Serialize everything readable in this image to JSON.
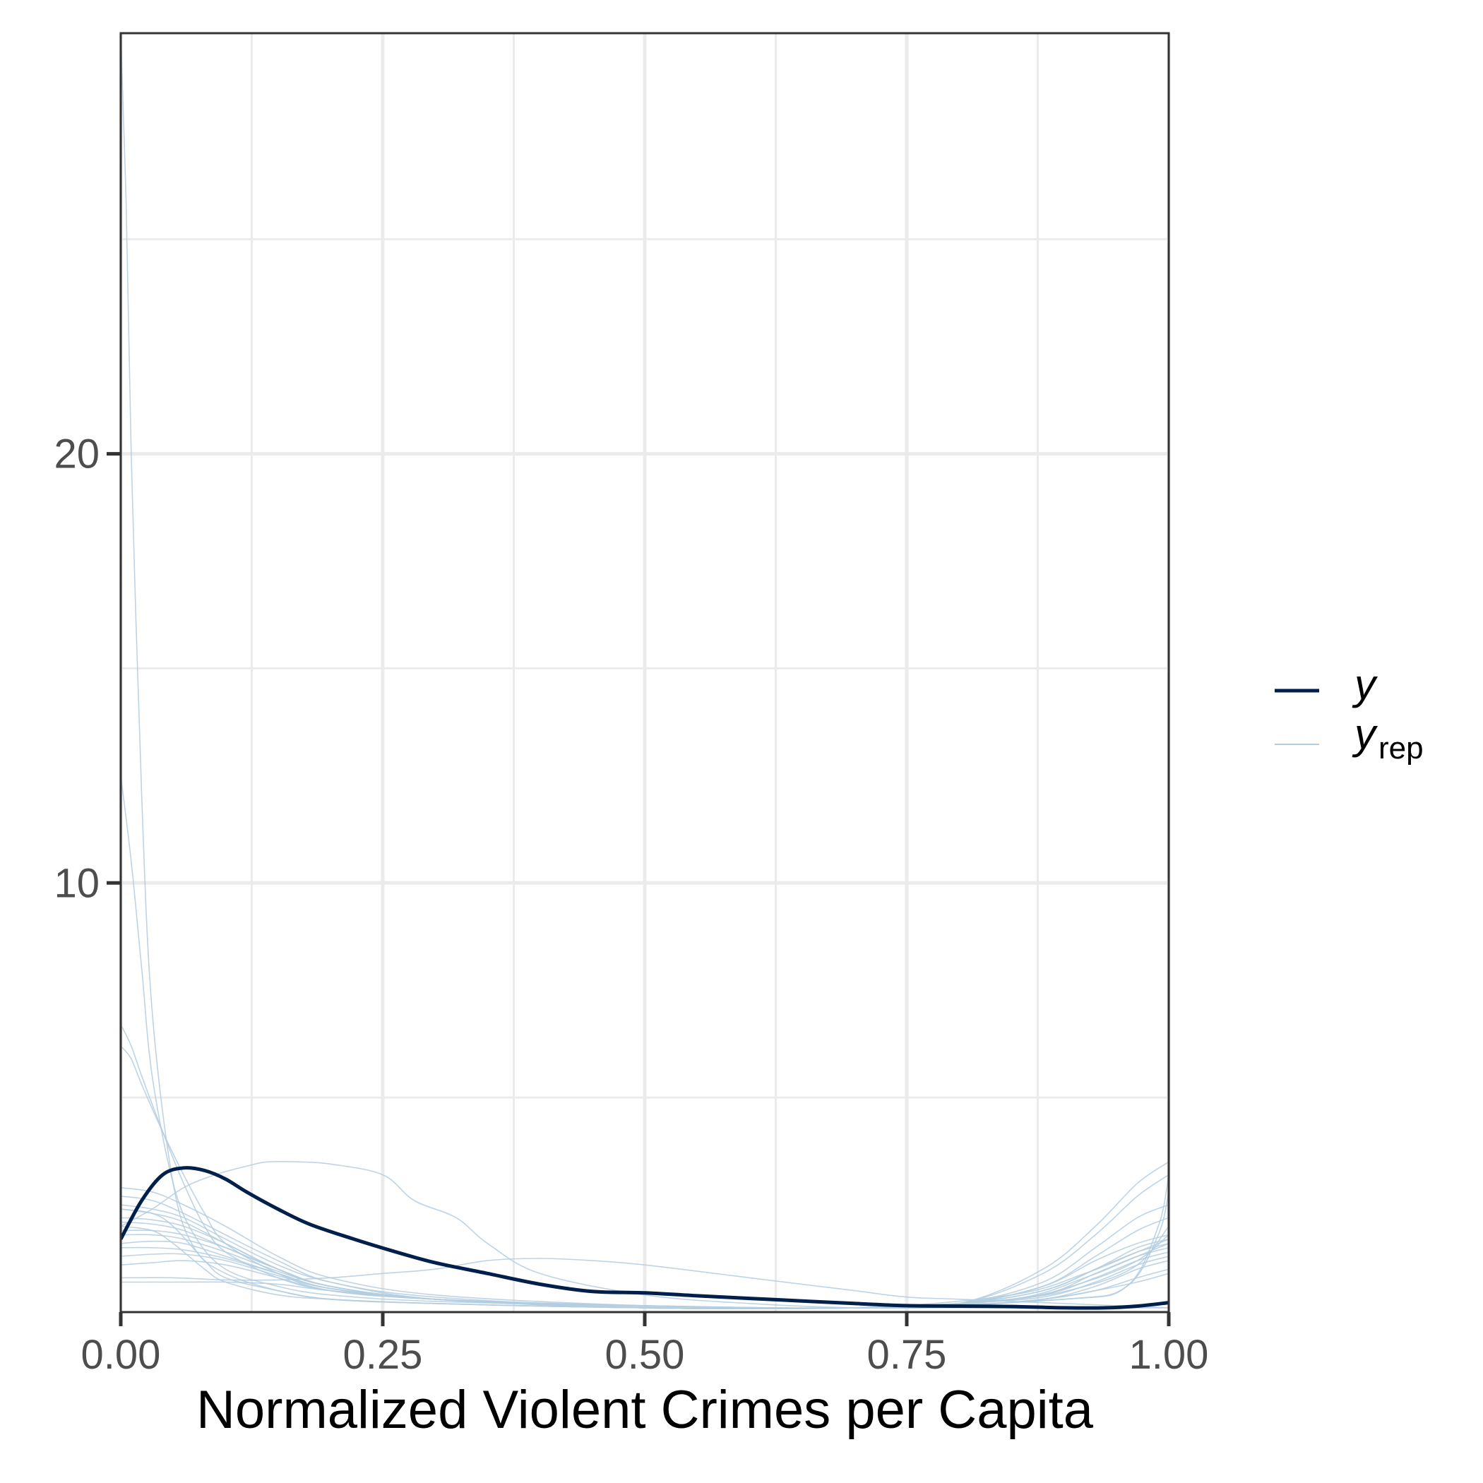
{
  "chart_data": {
    "type": "line",
    "xlabel": "Normalized Violent Crimes per Capita",
    "ylabel": "",
    "xlim": [
      0,
      1
    ],
    "ylim": [
      0,
      29.8
    ],
    "x_ticks": [
      {
        "value": 0,
        "label": "0.00"
      },
      {
        "value": 0.25,
        "label": "0.25"
      },
      {
        "value": 0.5,
        "label": "0.50"
      },
      {
        "value": 0.75,
        "label": "0.75"
      },
      {
        "value": 1,
        "label": "1.00"
      }
    ],
    "y_ticks": [
      {
        "value": 10,
        "label": "10"
      },
      {
        "value": 20,
        "label": "20"
      }
    ],
    "grid": true,
    "legend": {
      "placement": "right",
      "entries": [
        {
          "label": "y",
          "sub": ""
        },
        {
          "label": "y",
          "sub": "rep"
        }
      ]
    },
    "colors": {
      "y": "#011f4b",
      "yrep": "#b3cde0"
    },
    "series": [
      {
        "id": "y",
        "x": [
          0,
          0.02,
          0.04,
          0.06,
          0.08,
          0.1,
          0.12,
          0.15,
          0.18,
          0.22,
          0.26,
          0.3,
          0.35,
          0.4,
          0.45,
          0.5,
          0.55,
          0.6,
          0.65,
          0.7,
          0.75,
          0.8,
          0.85,
          0.9,
          0.94,
          0.97,
          1.0
        ],
        "values": [
          1.7,
          2.6,
          3.2,
          3.36,
          3.3,
          3.1,
          2.8,
          2.4,
          2.05,
          1.72,
          1.42,
          1.15,
          0.9,
          0.65,
          0.48,
          0.45,
          0.38,
          0.32,
          0.26,
          0.2,
          0.15,
          0.14,
          0.13,
          0.1,
          0.1,
          0.14,
          0.22
        ]
      },
      {
        "id": "yrep",
        "replicates": [
          {
            "x": [
              0,
              0.005,
              0.01,
              0.02,
              0.03,
              0.05,
              0.07,
              0.1,
              0.15,
              0.2,
              0.3,
              0.5,
              0.7,
              0.85,
              0.92,
              0.97,
              1.0
            ],
            "values": [
              29.8,
              26,
              20,
              12,
              7,
              3,
              1.5,
              0.9,
              0.5,
              0.3,
              0.2,
              0.1,
              0.1,
              0.3,
              0.6,
              1.1,
              2.0
            ]
          },
          {
            "x": [
              0,
              0.01,
              0.02,
              0.03,
              0.05,
              0.07,
              0.1,
              0.15,
              0.2,
              0.3,
              0.5,
              0.7,
              0.85,
              0.92,
              0.97,
              1.0
            ],
            "values": [
              12.5,
              10.5,
              8,
              5.5,
              3,
              1.8,
              1.0,
              0.6,
              0.4,
              0.25,
              0.15,
              0.1,
              0.3,
              0.7,
              1.2,
              1.8
            ]
          },
          {
            "x": [
              0,
              0.01,
              0.02,
              0.04,
              0.06,
              0.08,
              0.1,
              0.15,
              0.2,
              0.3,
              0.5,
              0.7,
              0.85,
              0.92,
              0.97,
              1.0
            ],
            "values": [
              6.7,
              6.2,
              5.5,
              4.2,
              3.0,
              2.0,
              1.4,
              0.8,
              0.5,
              0.3,
              0.15,
              0.1,
              0.4,
              0.9,
              1.4,
              1.7
            ]
          },
          {
            "x": [
              0,
              0.01,
              0.02,
              0.04,
              0.06,
              0.08,
              0.1,
              0.15,
              0.2,
              0.3,
              0.5,
              0.7,
              0.85,
              0.92,
              0.97,
              1.0
            ],
            "values": [
              6.2,
              5.9,
              5.3,
              4.2,
              3.2,
              2.3,
              1.6,
              0.9,
              0.5,
              0.3,
              0.15,
              0.1,
              0.3,
              0.8,
              1.3,
              1.6
            ]
          },
          {
            "x": [
              0,
              0.03,
              0.06,
              0.09,
              0.12,
              0.14,
              0.17,
              0.2,
              0.25,
              0.28,
              0.32,
              0.35,
              0.4,
              0.5,
              0.6,
              0.7,
              0.8,
              0.9,
              1.0
            ],
            "values": [
              2.0,
              2.4,
              2.9,
              3.2,
              3.4,
              3.5,
              3.5,
              3.45,
              3.2,
              2.6,
              2.2,
              1.6,
              0.9,
              0.4,
              0.2,
              0.1,
              0.1,
              0.1,
              0.1
            ]
          },
          {
            "x": [
              0,
              0.05,
              0.1,
              0.15,
              0.2,
              0.25,
              0.3,
              0.35,
              0.4,
              0.45,
              0.5,
              0.6,
              0.7,
              0.75,
              0.8,
              0.9,
              1.0
            ],
            "values": [
              0.8,
              0.8,
              0.75,
              0.75,
              0.8,
              0.9,
              1.0,
              1.2,
              1.25,
              1.2,
              1.1,
              0.8,
              0.5,
              0.35,
              0.3,
              0.2,
              0.1
            ]
          },
          {
            "x": [
              0,
              0.03,
              0.06,
              0.1,
              0.15,
              0.2,
              0.3,
              0.5,
              0.7,
              0.8,
              0.88,
              0.93,
              0.97,
              1.0
            ],
            "values": [
              2.9,
              2.8,
              2.5,
              2.0,
              1.3,
              0.8,
              0.4,
              0.15,
              0.1,
              0.2,
              1.0,
              2.0,
              3.0,
              3.5
            ]
          },
          {
            "x": [
              0,
              0.03,
              0.06,
              0.1,
              0.15,
              0.2,
              0.3,
              0.5,
              0.7,
              0.8,
              0.88,
              0.93,
              0.97,
              1.0
            ],
            "values": [
              2.7,
              2.6,
              2.3,
              1.8,
              1.2,
              0.7,
              0.35,
              0.12,
              0.1,
              0.2,
              0.9,
              1.8,
              2.7,
              3.2
            ]
          },
          {
            "x": [
              0,
              0.03,
              0.06,
              0.1,
              0.15,
              0.2,
              0.3,
              0.5,
              0.7,
              0.8,
              0.88,
              0.93,
              0.97,
              1.0
            ],
            "values": [
              2.5,
              2.4,
              2.2,
              1.7,
              1.1,
              0.7,
              0.3,
              0.1,
              0.1,
              0.2,
              0.7,
              1.5,
              2.2,
              2.5
            ]
          },
          {
            "x": [
              0,
              0.03,
              0.06,
              0.1,
              0.15,
              0.2,
              0.3,
              0.5,
              0.7,
              0.8,
              0.88,
              0.93,
              0.97,
              1.0
            ],
            "values": [
              2.4,
              2.3,
              2.1,
              1.6,
              1.0,
              0.6,
              0.3,
              0.1,
              0.1,
              0.2,
              0.6,
              1.3,
              1.9,
              2.2
            ]
          },
          {
            "x": [
              0,
              0.03,
              0.06,
              0.1,
              0.15,
              0.2,
              0.3,
              0.5,
              0.7,
              0.8,
              0.88,
              0.93,
              0.97,
              1.0
            ],
            "values": [
              2.2,
              2.15,
              2.0,
              1.6,
              1.0,
              0.6,
              0.3,
              0.1,
              0.1,
              0.2,
              0.6,
              1.2,
              1.6,
              1.8
            ]
          },
          {
            "x": [
              0,
              0.03,
              0.06,
              0.1,
              0.15,
              0.2,
              0.3,
              0.5,
              0.7,
              0.8,
              0.88,
              0.93,
              0.97,
              1.0
            ],
            "values": [
              2.1,
              2.05,
              1.9,
              1.5,
              1.0,
              0.6,
              0.3,
              0.1,
              0.1,
              0.2,
              0.5,
              1.0,
              1.5,
              1.7
            ]
          },
          {
            "x": [
              0,
              0.03,
              0.06,
              0.1,
              0.15,
              0.2,
              0.3,
              0.5,
              0.7,
              0.8,
              0.88,
              0.93,
              0.97,
              1.0
            ],
            "values": [
              1.9,
              1.9,
              1.8,
              1.5,
              1.0,
              0.6,
              0.3,
              0.1,
              0.1,
              0.2,
              0.5,
              1.0,
              1.4,
              1.6
            ]
          },
          {
            "x": [
              0,
              0.03,
              0.06,
              0.1,
              0.15,
              0.2,
              0.3,
              0.5,
              0.7,
              0.8,
              0.88,
              0.93,
              0.97,
              1.0
            ],
            "values": [
              1.8,
              1.8,
              1.7,
              1.4,
              0.95,
              0.6,
              0.3,
              0.1,
              0.1,
              0.2,
              0.4,
              0.9,
              1.3,
              1.5
            ]
          },
          {
            "x": [
              0,
              0.03,
              0.06,
              0.1,
              0.15,
              0.2,
              0.3,
              0.5,
              0.7,
              0.8,
              0.88,
              0.93,
              0.97,
              1.0
            ],
            "values": [
              1.6,
              1.65,
              1.6,
              1.3,
              0.9,
              0.55,
              0.3,
              0.1,
              0.1,
              0.2,
              0.4,
              0.8,
              1.2,
              1.4
            ]
          },
          {
            "x": [
              0,
              0.03,
              0.06,
              0.1,
              0.15,
              0.2,
              0.3,
              0.5,
              0.7,
              0.8,
              0.88,
              0.93,
              0.97,
              1.0
            ],
            "values": [
              1.5,
              1.5,
              1.45,
              1.25,
              0.9,
              0.55,
              0.3,
              0.1,
              0.1,
              0.2,
              0.35,
              0.7,
              1.1,
              1.3
            ]
          },
          {
            "x": [
              0,
              0.03,
              0.06,
              0.1,
              0.15,
              0.2,
              0.3,
              0.5,
              0.7,
              0.8,
              0.88,
              0.93,
              0.97,
              1.0
            ],
            "values": [
              1.3,
              1.35,
              1.35,
              1.2,
              0.85,
              0.55,
              0.3,
              0.1,
              0.1,
              0.15,
              0.3,
              0.6,
              1.0,
              1.2
            ]
          },
          {
            "x": [
              0,
              0.03,
              0.06,
              0.1,
              0.15,
              0.2,
              0.3,
              0.5,
              0.7,
              0.8,
              0.88,
              0.93,
              0.97,
              1.0
            ],
            "values": [
              1.1,
              1.15,
              1.2,
              1.1,
              0.8,
              0.5,
              0.3,
              0.1,
              0.1,
              0.15,
              0.3,
              0.5,
              0.8,
              1.0
            ]
          },
          {
            "x": [
              0,
              0.03,
              0.06,
              0.1,
              0.15,
              0.2,
              0.3,
              0.5,
              0.7,
              0.8,
              0.88,
              0.93,
              0.97,
              1.0
            ],
            "values": [
              0.7,
              0.7,
              0.7,
              0.7,
              0.65,
              0.5,
              0.3,
              0.1,
              0.1,
              0.15,
              0.3,
              0.5,
              0.7,
              0.9
            ]
          },
          {
            "x": [
              0,
              0.03,
              0.05,
              0.08,
              0.1,
              0.15,
              0.2,
              0.3,
              0.5,
              0.7,
              0.9,
              0.96,
              0.99,
              1.0
            ],
            "values": [
              2.4,
              2.3,
              2.0,
              1.2,
              0.8,
              0.5,
              0.3,
              0.2,
              0.1,
              0.1,
              0.3,
              0.6,
              2.0,
              3.2
            ]
          },
          {
            "x": [
              0,
              0.03,
              0.05,
              0.08,
              0.1,
              0.15,
              0.2,
              0.3,
              0.5,
              0.7,
              0.9,
              0.96,
              0.99,
              1.0
            ],
            "values": [
              2.0,
              1.9,
              1.6,
              1.0,
              0.7,
              0.4,
              0.3,
              0.2,
              0.1,
              0.1,
              0.3,
              0.6,
              1.8,
              2.8
            ]
          }
        ]
      }
    ]
  }
}
